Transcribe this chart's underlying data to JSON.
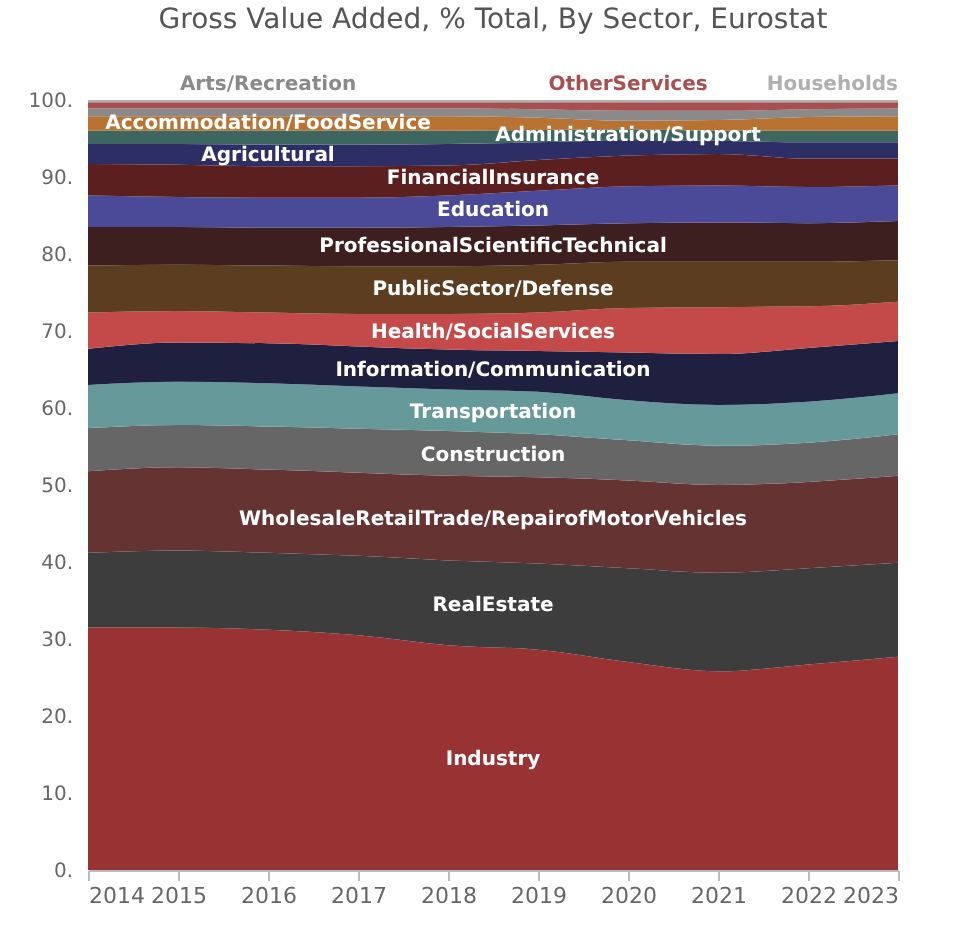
{
  "chart_data": {
    "type": "area",
    "stacked": true,
    "title": "Gross Value Added, % Total, By Sector, Eurostat",
    "x": [
      2014,
      2015,
      2016,
      2017,
      2018,
      2019,
      2020,
      2021,
      2022,
      2023
    ],
    "xlim": [
      2014,
      2023
    ],
    "xticks": [
      2014,
      2015,
      2016,
      2017,
      2018,
      2019,
      2020,
      2021,
      2022,
      2023
    ],
    "ylim": [
      0,
      100
    ],
    "yticks": [
      {
        "value": 0,
        "label": "0."
      },
      {
        "value": 10,
        "label": "10."
      },
      {
        "value": 20,
        "label": "20."
      },
      {
        "value": 30,
        "label": "30."
      },
      {
        "value": 40,
        "label": "40."
      },
      {
        "value": 50,
        "label": "50."
      },
      {
        "value": 60,
        "label": "60."
      },
      {
        "value": 70,
        "label": "70."
      },
      {
        "value": 80,
        "label": "80."
      },
      {
        "value": 90,
        "label": "90."
      },
      {
        "value": 100,
        "label": "100."
      }
    ],
    "grid": false,
    "legend": false,
    "series": [
      {
        "name": "Industry",
        "color": "#993333",
        "values": [
          31.5,
          31.5,
          31.2,
          30.5,
          29.2,
          28.6,
          27.0,
          25.8,
          26.7,
          27.7
        ]
      },
      {
        "name": "RealEstate",
        "color": "#3d3d3d",
        "values": [
          9.7,
          10.0,
          10.0,
          10.3,
          11.0,
          11.2,
          12.2,
          12.8,
          12.5,
          12.2
        ]
      },
      {
        "name": "WholesaleRetailTrade/RepairofMotorVehicles",
        "color": "#663333",
        "values": [
          10.6,
          10.8,
          10.8,
          10.8,
          11.0,
          11.2,
          11.4,
          11.4,
          11.2,
          11.3
        ]
      },
      {
        "name": "Construction",
        "color": "#666666",
        "values": [
          5.6,
          5.5,
          5.6,
          5.7,
          5.8,
          5.6,
          5.2,
          5.1,
          5.1,
          5.4
        ]
      },
      {
        "name": "Transportation",
        "color": "#669999",
        "values": [
          5.6,
          5.6,
          5.6,
          5.5,
          5.4,
          5.5,
          5.2,
          5.3,
          5.3,
          5.3
        ]
      },
      {
        "name": "Information/Communication",
        "color": "#1f1f3f",
        "values": [
          4.7,
          5.1,
          5.2,
          5.2,
          5.2,
          5.3,
          6.2,
          6.6,
          7.0,
          6.8
        ]
      },
      {
        "name": "Health/SocialServices",
        "color": "#c44a4a",
        "values": [
          4.7,
          4.1,
          4.0,
          4.2,
          4.6,
          5.0,
          5.8,
          6.1,
          5.4,
          5.1
        ]
      },
      {
        "name": "PublicSector/Defense",
        "color": "#5c3d1f",
        "values": [
          6.1,
          6.0,
          6.1,
          6.2,
          6.2,
          6.2,
          6.0,
          5.9,
          5.8,
          5.4
        ]
      },
      {
        "name": "ProfessionalScientificTechnical",
        "color": "#3d1f1f",
        "values": [
          5.0,
          4.9,
          4.9,
          5.0,
          5.1,
          5.1,
          5.0,
          5.1,
          5.0,
          5.1
        ]
      },
      {
        "name": "Education",
        "color": "#4a4a99",
        "values": [
          4.1,
          3.9,
          3.9,
          3.9,
          4.1,
          4.5,
          4.8,
          4.8,
          4.7,
          4.6
        ]
      },
      {
        "name": "FinancialInsurance",
        "color": "#5c1f1f",
        "values": [
          4.1,
          4.2,
          4.1,
          4.1,
          3.9,
          4.0,
          4.0,
          4.1,
          3.7,
          3.5
        ]
      },
      {
        "name": "Agricultural",
        "color": "#2e2e66",
        "values": [
          2.6,
          2.7,
          2.8,
          2.8,
          2.8,
          2.3,
          2.0,
          1.7,
          2.1,
          2.1
        ]
      },
      {
        "name": "Administration/Support",
        "color": "#3d6660",
        "values": [
          1.7,
          1.7,
          1.8,
          1.8,
          1.7,
          1.6,
          1.4,
          1.3,
          1.5,
          1.5
        ]
      },
      {
        "name": "Accommodation/FoodService",
        "color": "#b87333",
        "values": [
          1.9,
          1.9,
          1.9,
          1.9,
          1.9,
          1.6,
          1.1,
          1.4,
          1.8,
          1.9
        ]
      },
      {
        "name": "Arts/Recreation",
        "color": "#8a8a8a",
        "values": [
          1.0,
          1.0,
          1.0,
          1.0,
          1.0,
          1.1,
          1.3,
          1.2,
          1.0,
          1.0
        ]
      },
      {
        "name": "OtherServices",
        "color": "#a85050",
        "values": [
          0.8,
          0.8,
          0.8,
          0.8,
          0.8,
          0.9,
          1.1,
          1.1,
          0.9,
          0.8
        ]
      },
      {
        "name": "Households",
        "color": "#b0b0b0",
        "values": [
          0.3,
          0.3,
          0.3,
          0.3,
          0.3,
          0.3,
          0.3,
          0.3,
          0.3,
          0.3
        ]
      }
    ]
  }
}
